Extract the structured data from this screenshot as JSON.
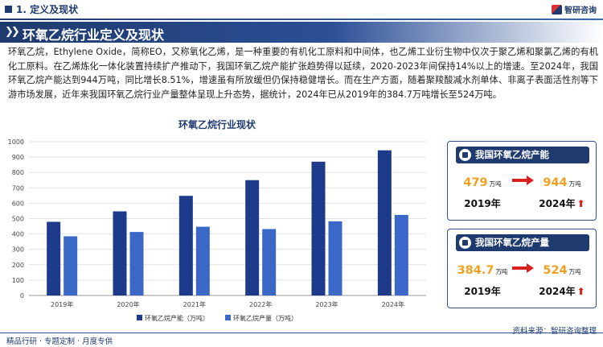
{
  "header": {
    "section_label": "1. 定义及现状",
    "logo_text": "智研咨询"
  },
  "title": "环氧乙烷行业定义及现状",
  "paragraph": "环氧乙烷，Ethylene Oxide，简称EO，又称氧化乙烯，是一种重要的有机化工原料和中间体，也乙烯工业衍生物中仅次于聚乙烯和聚氯乙烯的有机化工原料。在乙烯炼化一体化装置持续扩产推动下，我国环氧乙烷产能扩张趋势得以延续，2020-2023年间保持14%以上的增速。至2024年，我国环氧乙烷产能达到944万吨，同比增长8.51%，增速虽有所放缓但仍保持稳健增长。而在生产方面，随着聚羧酸减水剂单体、非离子表面活性剂等下游市场发展，近年来我国环氧乙烷行业产量整体呈现上升态势，据统计，2024年已从2019年的384.7万吨增长至524万吨。",
  "chart_data": {
    "type": "bar",
    "title": "环氧乙烷行业现状",
    "categories": [
      "2019年",
      "2020年",
      "2021年",
      "2022年",
      "2023年",
      "2024年"
    ],
    "series": [
      {
        "name": "环氧乙烷产能（万吨）",
        "values": [
          479,
          547,
          648,
          750,
          870,
          944
        ],
        "color": "#1e3a8a"
      },
      {
        "name": "环氧乙烷产量（万吨）",
        "values": [
          384.7,
          413,
          447,
          432,
          482,
          524
        ],
        "color": "#3b67c6"
      }
    ],
    "yticks": [
      "0",
      "100",
      "200",
      "300",
      "400",
      "500",
      "600",
      "700",
      "800",
      "900",
      "1000"
    ],
    "ylim": [
      0,
      1000
    ],
    "grid": true,
    "legend": "bottom"
  },
  "cards": [
    {
      "label": "我国环氧乙烷产能",
      "from_value": "479",
      "from_unit": "万吨",
      "from_year": "2019年",
      "to_value": "944",
      "to_unit": "万吨",
      "to_year": "2024年"
    },
    {
      "label": "我国环氧乙烷产量",
      "from_value": "384.7",
      "from_unit": "万吨",
      "from_year": "2019年",
      "to_value": "524",
      "to_unit": "万吨",
      "to_year": "2024年"
    }
  ],
  "footer": {
    "left": "精品行研 · 专题定制 · 月度专供",
    "source": "资料来源：智研咨询整理"
  },
  "colors": {
    "brand": "#1e3a6e",
    "accent": "#f0a020",
    "up": "#d8201c"
  }
}
